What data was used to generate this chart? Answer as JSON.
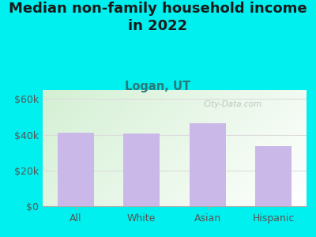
{
  "title": "Median non-family household income\nin 2022",
  "subtitle": "Logan, UT",
  "categories": [
    "All",
    "White",
    "Asian",
    "Hispanic"
  ],
  "values": [
    41000,
    40500,
    46500,
    33500
  ],
  "bar_color": "#c9b8e8",
  "background_outer": "#00EFEF",
  "title_color": "#1a1a1a",
  "subtitle_color": "#2a7a7a",
  "tick_label_color": "#555555",
  "yticks": [
    0,
    20000,
    40000,
    60000
  ],
  "ytick_labels": [
    "$0",
    "$20k",
    "$40k",
    "$60k"
  ],
  "ylim": [
    0,
    65000
  ],
  "watermark": "City-Data.com",
  "grid_color": "#dddddd",
  "title_fontsize": 13,
  "subtitle_fontsize": 10.5
}
